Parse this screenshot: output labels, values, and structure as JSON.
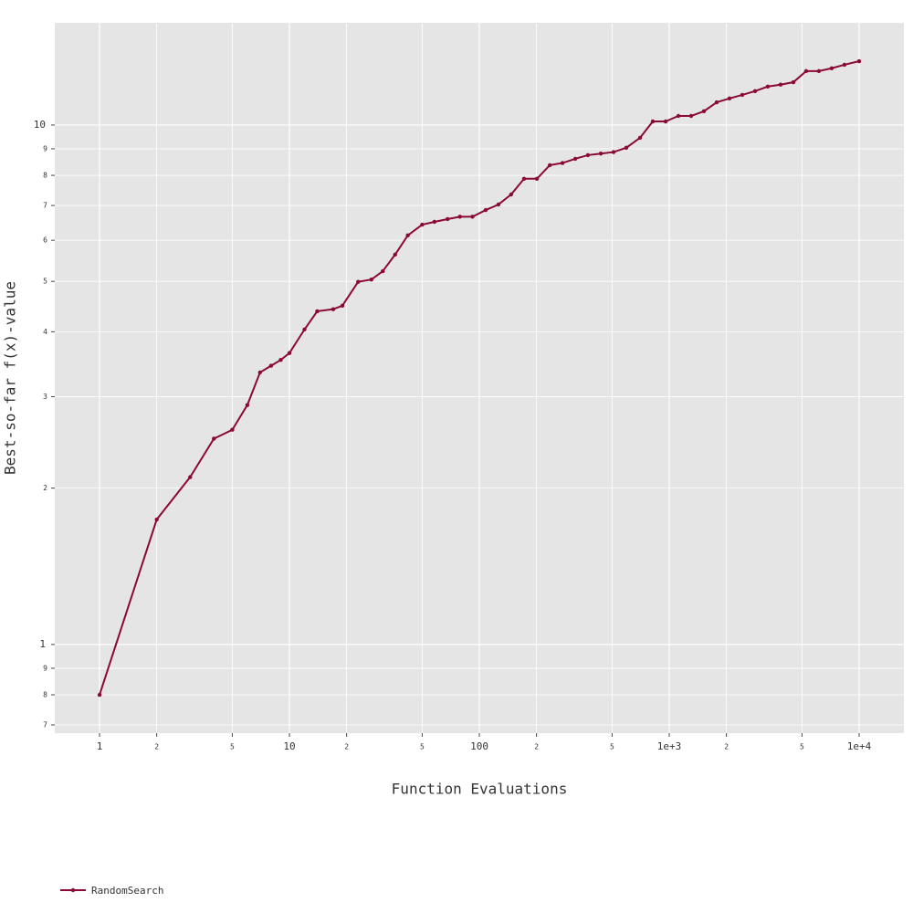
{
  "chart_data": {
    "type": "line",
    "x_label": "Function Evaluations",
    "y_label": "Best-so-far f(x)-value",
    "xscale": "log",
    "yscale": "log",
    "grid": true,
    "legend": "bottom-left",
    "xlim": [
      0.581,
      17200
    ],
    "ylim": [
      0.675,
      15.73
    ],
    "xticks": [
      1,
      2,
      5,
      10,
      {
        "value": 20,
        "label": "2"
      },
      {
        "value": 50,
        "label": "5"
      },
      100,
      {
        "value": 200,
        "label": "2"
      },
      {
        "value": 500,
        "label": "5"
      },
      {
        "value": 1000,
        "label": "1e+3"
      },
      {
        "value": 2000,
        "label": "2"
      },
      {
        "value": 5000,
        "label": "5"
      },
      {
        "value": 10000,
        "label": "1e+4"
      }
    ],
    "yticks": [
      {
        "value": 0.7,
        "label": "7"
      },
      {
        "value": 0.8,
        "label": "8"
      },
      {
        "value": 0.9,
        "label": "9"
      },
      1,
      2,
      3,
      4,
      5,
      6,
      7,
      8,
      9,
      10
    ],
    "series": [
      {
        "name": "RandomSearch",
        "color": "#8b0a33",
        "x": [
          1,
          2,
          3,
          4,
          5,
          6,
          7,
          8,
          9,
          10,
          12,
          14,
          17,
          19,
          23,
          27,
          31,
          36,
          42,
          50,
          58,
          68,
          79,
          92,
          108,
          126,
          147,
          172,
          201,
          235,
          274,
          320,
          373,
          436,
          509,
          594,
          702,
          819,
          957,
          1117,
          1304,
          1523,
          1778,
          2076,
          2424,
          2830,
          3304,
          3858,
          4505,
          5260,
          6140,
          7170,
          8370,
          10000
        ],
        "values": [
          0.8,
          1.74,
          2.1,
          2.49,
          2.59,
          2.89,
          3.34,
          3.44,
          3.53,
          3.64,
          4.04,
          4.38,
          4.42,
          4.49,
          4.99,
          5.04,
          5.23,
          5.63,
          6.13,
          6.43,
          6.51,
          6.59,
          6.66,
          6.66,
          6.86,
          7.03,
          7.35,
          7.88,
          7.88,
          8.37,
          8.45,
          8.61,
          8.75,
          8.81,
          8.87,
          9.04,
          9.45,
          10.16,
          10.16,
          10.41,
          10.41,
          10.63,
          11.06,
          11.25,
          11.43,
          11.62,
          11.86,
          11.96,
          12.09,
          12.7,
          12.7,
          12.86,
          13.06,
          13.27
        ]
      }
    ]
  }
}
